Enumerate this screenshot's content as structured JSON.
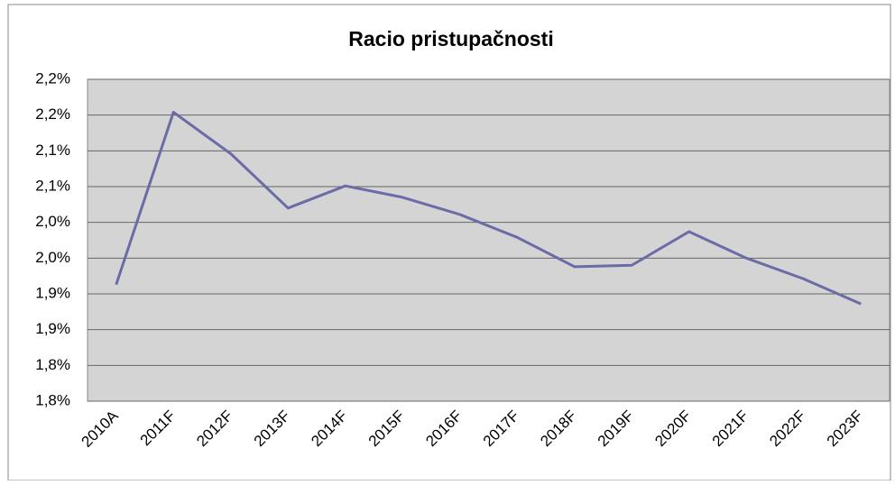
{
  "chart_data": {
    "type": "line",
    "title": "Racio pristupačnosti",
    "categories": [
      "2010A",
      "2011F",
      "2012F",
      "2013F",
      "2014F",
      "2015F",
      "2016F",
      "2017F",
      "2018F",
      "2019F",
      "2020F",
      "2021F",
      "2022F",
      "2023F"
    ],
    "series": [
      {
        "name": "Racio pristupačnosti",
        "color": "#6b6ba8",
        "values": [
          1.963,
          2.204,
          2.146,
          2.07,
          2.101,
          2.085,
          2.061,
          2.029,
          1.988,
          1.99,
          2.037,
          2.0,
          1.971,
          1.936
        ]
      }
    ],
    "ylim": [
      1.8,
      2.25
    ],
    "yticks": [
      {
        "value": 1.8,
        "label": "1,8%"
      },
      {
        "value": 1.85,
        "label": "1,8%"
      },
      {
        "value": 1.9,
        "label": "1,9%"
      },
      {
        "value": 1.95,
        "label": "1,9%"
      },
      {
        "value": 2.0,
        "label": "2,0%"
      },
      {
        "value": 2.05,
        "label": "2,0%"
      },
      {
        "value": 2.1,
        "label": "2,1%"
      },
      {
        "value": 2.15,
        "label": "2,1%"
      },
      {
        "value": 2.2,
        "label": "2,2%"
      },
      {
        "value": 2.25,
        "label": "2,2%"
      }
    ],
    "grid": true
  }
}
